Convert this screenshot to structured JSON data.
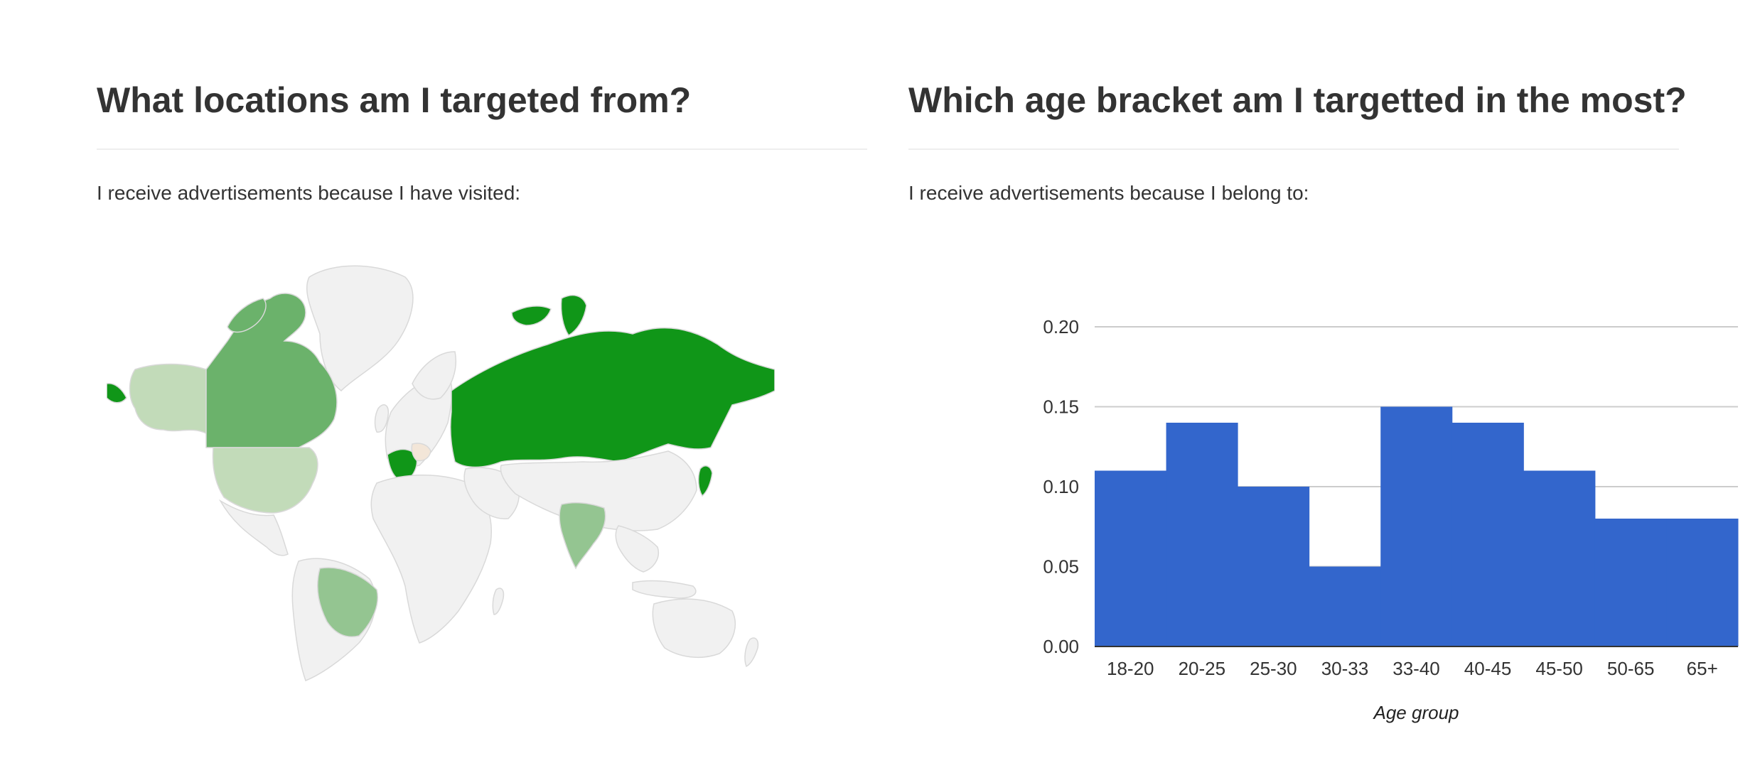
{
  "locations": {
    "title": "What locations am I targeted from?",
    "subtitle": "I receive advertisements because I have visited:",
    "colors": {
      "base": "#f1f1f1",
      "border": "#d9d9d9",
      "strongest": "#109618",
      "strong": "#6bb26b",
      "medium": "#94c591",
      "light": "#c2dbb9",
      "faint": "#f3e6d8"
    },
    "regions": [
      {
        "name": "russia",
        "level": "strongest"
      },
      {
        "name": "france",
        "level": "strongest"
      },
      {
        "name": "canada",
        "level": "strong"
      },
      {
        "name": "brazil",
        "level": "medium"
      },
      {
        "name": "india",
        "level": "medium"
      },
      {
        "name": "united-states",
        "level": "light"
      },
      {
        "name": "alaska",
        "level": "light"
      },
      {
        "name": "germany",
        "level": "faint"
      }
    ]
  },
  "ages": {
    "title": "Which age bracket am I targetted in the most?",
    "subtitle": "I receive advertisements because I belong to:",
    "bar_color": "#3366cc",
    "grid_color": "#cccccc"
  },
  "chart_data": {
    "type": "bar",
    "categories": [
      "18-20",
      "20-25",
      "25-30",
      "30-33",
      "33-40",
      "40-45",
      "45-50",
      "50-65",
      "65+"
    ],
    "values": [
      0.11,
      0.14,
      0.1,
      0.05,
      0.15,
      0.14,
      0.11,
      0.08,
      0.08
    ],
    "xlabel": "Age group",
    "ylabel": "",
    "ylim": [
      0,
      0.2
    ],
    "yticks": [
      "0.00",
      "0.05",
      "0.10",
      "0.15",
      "0.20"
    ],
    "grid": true,
    "bar_gap": 0
  }
}
